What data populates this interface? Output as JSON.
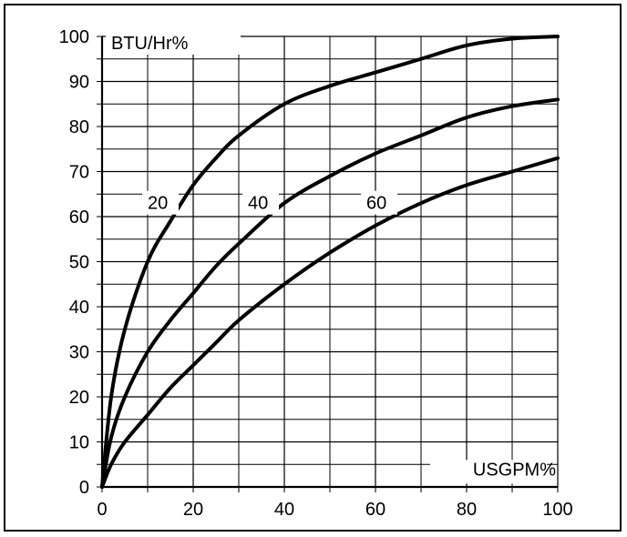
{
  "chart_data": {
    "type": "line",
    "title": "",
    "ylabel": "BTU/Hr%",
    "xlabel": "USGPM%",
    "xlim": [
      0,
      100
    ],
    "ylim": [
      0,
      100
    ],
    "x_ticks": [
      0,
      20,
      40,
      60,
      80,
      100
    ],
    "y_ticks": [
      0,
      10,
      20,
      30,
      40,
      50,
      60,
      70,
      80,
      90,
      100
    ],
    "x_tick_labels": [
      "0",
      "20",
      "40",
      "60",
      "80",
      "100"
    ],
    "y_tick_labels": [
      "0",
      "10",
      "20",
      "30",
      "40",
      "50",
      "60",
      "70",
      "80",
      "90",
      "100"
    ],
    "grid": true,
    "series": [
      {
        "name": "20",
        "x": [
          0,
          2,
          5,
          10,
          15,
          20,
          25,
          30,
          40,
          50,
          60,
          70,
          80,
          90,
          100
        ],
        "y": [
          0,
          20,
          35,
          50,
          59,
          67,
          73,
          78,
          85,
          89,
          92,
          95,
          98,
          99.5,
          100
        ]
      },
      {
        "name": "40",
        "x": [
          0,
          2,
          5,
          10,
          15,
          20,
          25,
          30,
          40,
          50,
          60,
          70,
          80,
          90,
          100
        ],
        "y": [
          0,
          11,
          20,
          30,
          37,
          43,
          49,
          54,
          63,
          69,
          74,
          78,
          82,
          84.5,
          86
        ]
      },
      {
        "name": "60",
        "x": [
          0,
          2,
          5,
          10,
          15,
          20,
          25,
          30,
          40,
          50,
          60,
          70,
          80,
          90,
          100
        ],
        "y": [
          0,
          5,
          10,
          16,
          22,
          27,
          32,
          37,
          45,
          52,
          58,
          63,
          67,
          70,
          73
        ]
      }
    ],
    "curve_labels": [
      {
        "text": "20",
        "x": 10,
        "y": 63.5
      },
      {
        "text": "40",
        "x": 32,
        "y": 63.5
      },
      {
        "text": "60",
        "x": 58,
        "y": 63.5
      }
    ]
  }
}
